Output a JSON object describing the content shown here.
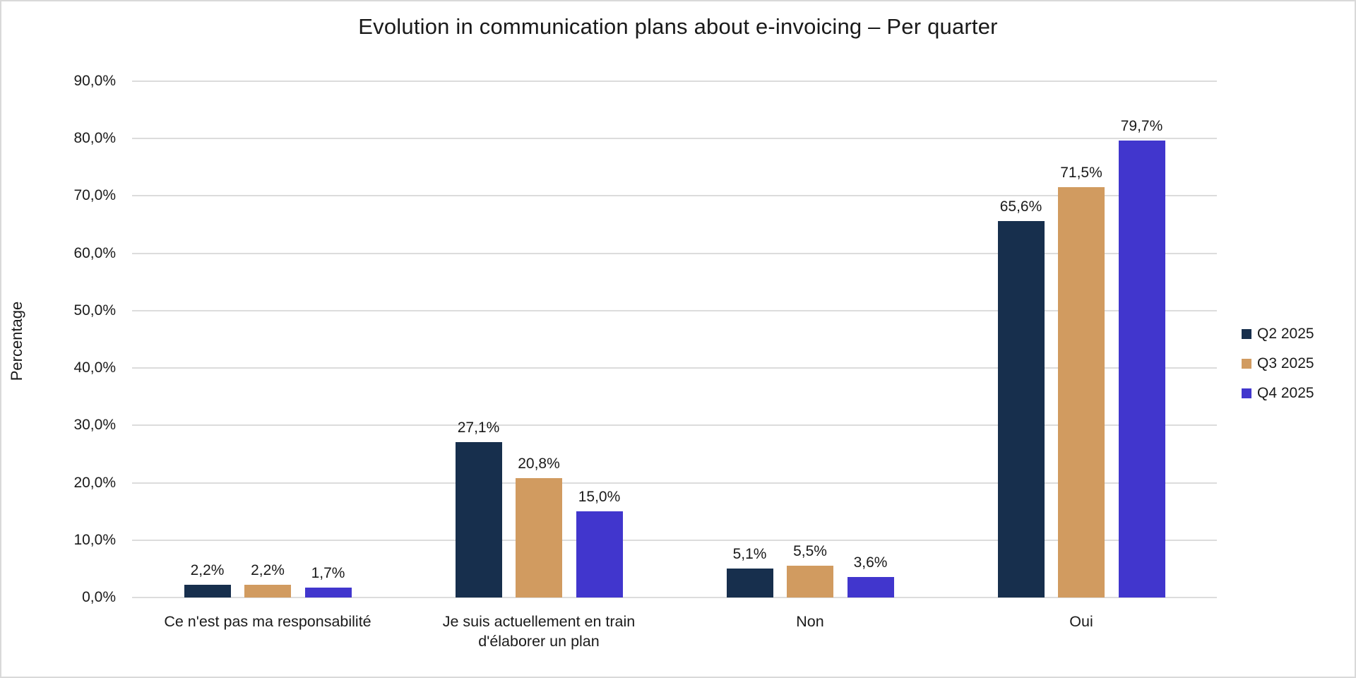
{
  "frame": {
    "background": "#FFFFFF",
    "border_color": "#D9D9D9"
  },
  "chart_data": {
    "type": "bar",
    "title": "Evolution in communication plans about e-invoicing – Per quarter",
    "xlabel": "",
    "ylabel": "Percentage",
    "ylim": [
      0,
      90
    ],
    "grid": true,
    "legend_position": "right",
    "decimal_separator": ",",
    "y_ticks": [
      {
        "value": 0,
        "label": "0,0%"
      },
      {
        "value": 10,
        "label": "10,0%"
      },
      {
        "value": 20,
        "label": "20,0%"
      },
      {
        "value": 30,
        "label": "30,0%"
      },
      {
        "value": 40,
        "label": "40,0%"
      },
      {
        "value": 50,
        "label": "50,0%"
      },
      {
        "value": 60,
        "label": "60,0%"
      },
      {
        "value": 70,
        "label": "70,0%"
      },
      {
        "value": 80,
        "label": "80,0%"
      },
      {
        "value": 90,
        "label": "90,0%"
      }
    ],
    "categories": [
      "Ce n'est pas ma responsabilité",
      "Je suis actuellement en train d'élaborer un plan",
      "Non",
      "Oui"
    ],
    "category_label_lines": [
      [
        "Ce n'est pas ma responsabilité"
      ],
      [
        "Je suis actuellement en train",
        "d'élaborer un plan"
      ],
      [
        "Non"
      ],
      [
        "Oui"
      ]
    ],
    "series": [
      {
        "name": "Q2 2025",
        "color": "#172F4D",
        "values": [
          2.2,
          27.1,
          5.1,
          65.6
        ],
        "labels": [
          "2,2%",
          "27,1%",
          "5,1%",
          "65,6%"
        ]
      },
      {
        "name": "Q3 2025",
        "color": "#D19B60",
        "values": [
          2.2,
          20.8,
          5.5,
          71.5
        ],
        "labels": [
          "2,2%",
          "20,8%",
          "5,5%",
          "71,5%"
        ]
      },
      {
        "name": "Q4 2025",
        "color": "#4136CD",
        "values": [
          1.7,
          15.0,
          3.6,
          79.7
        ],
        "labels": [
          "1,7%",
          "15,0%",
          "3,6%",
          "79,7%"
        ]
      }
    ]
  }
}
